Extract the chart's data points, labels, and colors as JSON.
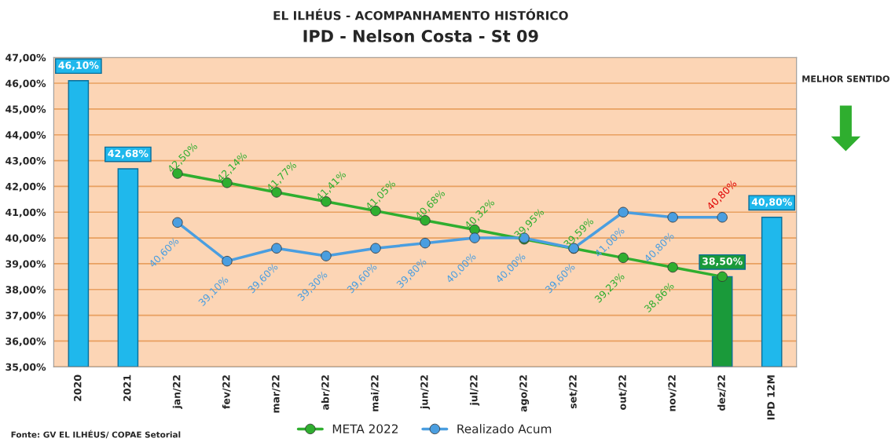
{
  "chart_data": {
    "type": "bar",
    "title": "IPD - Nelson Costa - St 09",
    "subtitle": "EL ILHÉUS - ACOMPANHAMENTO HISTÓRICO",
    "categories": [
      "2020",
      "2021",
      "jan/22",
      "fev/22",
      "mar/22",
      "abr/22",
      "mai/22",
      "jun/22",
      "jul/22",
      "ago/22",
      "set/22",
      "out/22",
      "nov/22",
      "dez/22",
      "IPD 12M"
    ],
    "series": [
      {
        "values": [
          46.1,
          42.68,
          null,
          null,
          null,
          null,
          null,
          null,
          null,
          null,
          null,
          null,
          null,
          38.5,
          40.8
        ],
        "colors": [
          "#1fb8ec",
          "#1fb8ec",
          null,
          null,
          null,
          null,
          null,
          null,
          null,
          null,
          null,
          null,
          null,
          "#1a9a3a",
          "#1fb8ec"
        ],
        "value_labels": [
          "46,10%",
          "42,68%",
          null,
          null,
          null,
          null,
          null,
          null,
          null,
          null,
          null,
          null,
          null,
          "38,50%",
          "40,80%"
        ]
      },
      {
        "type": "line",
        "name": "META 2022",
        "color": "#2fae2f",
        "values": [
          null,
          null,
          42.5,
          42.14,
          41.77,
          41.41,
          41.05,
          40.68,
          40.32,
          39.95,
          39.59,
          39.23,
          38.86,
          38.5,
          null
        ],
        "value_labels": [
          null,
          null,
          "42,50%",
          "42,14%",
          "41,77%",
          "41,41%",
          "41,05%",
          "40,68%",
          "40,32%",
          "39,95%",
          "39,59%",
          "39,23%",
          "38,86%",
          null,
          null
        ]
      },
      {
        "type": "line",
        "name": "Realizado Acum",
        "color": "#4a9ee0",
        "values": [
          null,
          null,
          40.6,
          39.1,
          39.6,
          39.3,
          39.6,
          39.8,
          40.0,
          40.0,
          39.6,
          41.0,
          40.8,
          40.8,
          null
        ],
        "value_labels": [
          null,
          null,
          "40,60%",
          "39,10%",
          "39,60%",
          "39,30%",
          "39,60%",
          "39,80%",
          "40,00%",
          "40,00%",
          "39,60%",
          "41,00%",
          "40,80%",
          "40,80%",
          null
        ]
      }
    ],
    "ylim": [
      35,
      47
    ],
    "yticks": [
      {
        "value": 35,
        "label": "35,00%"
      },
      {
        "value": 36,
        "label": "36,00%"
      },
      {
        "value": 37,
        "label": "37,00%"
      },
      {
        "value": 38,
        "label": "38,00%"
      },
      {
        "value": 39,
        "label": "39,00%"
      },
      {
        "value": 40,
        "label": "40,00%"
      },
      {
        "value": 41,
        "label": "41,00%"
      },
      {
        "value": 42,
        "label": "42,00%"
      },
      {
        "value": 43,
        "label": "43,00%"
      },
      {
        "value": 44,
        "label": "44,00%"
      },
      {
        "value": 45,
        "label": "45,00%"
      },
      {
        "value": 46,
        "label": "46,00%"
      },
      {
        "value": 47,
        "label": "47,00%"
      }
    ],
    "grid": "y",
    "legend": "bottom",
    "marker": "circle",
    "annotations": [
      "Fonte: GV EL ILHÉUS/ COPAE Setorial",
      "MELHOR SENTIDO"
    ]
  }
}
